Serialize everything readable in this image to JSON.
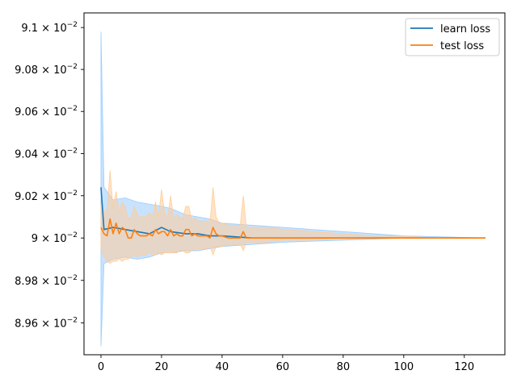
{
  "chart_data": {
    "type": "line",
    "title": "",
    "xlabel": "",
    "ylabel": "",
    "yscale": "log",
    "xlim": [
      -5.6,
      133.4
    ],
    "ylim": [
      0.08945,
      0.09107
    ],
    "x_ticks": [
      {
        "value": 0,
        "label": "0"
      },
      {
        "value": 20,
        "label": "20"
      },
      {
        "value": 40,
        "label": "40"
      },
      {
        "value": 60,
        "label": "60"
      },
      {
        "value": 80,
        "label": "80"
      },
      {
        "value": 100,
        "label": "100"
      },
      {
        "value": 120,
        "label": "120"
      }
    ],
    "y_ticks": [
      {
        "value": 0.0896,
        "mantissa": "8.96",
        "exponent": "−2"
      },
      {
        "value": 0.0898,
        "mantissa": "8.98",
        "exponent": "−2"
      },
      {
        "value": 0.09,
        "mantissa": "9",
        "exponent": "−2"
      },
      {
        "value": 0.0902,
        "mantissa": "9.02",
        "exponent": "−2"
      },
      {
        "value": 0.0904,
        "mantissa": "9.04",
        "exponent": "−2"
      },
      {
        "value": 0.0906,
        "mantissa": "9.06",
        "exponent": "−2"
      },
      {
        "value": 0.0908,
        "mantissa": "9.08",
        "exponent": "−2"
      },
      {
        "value": 0.091,
        "mantissa": "9.1",
        "exponent": "−2"
      }
    ],
    "tick_base": "× 10",
    "grid": false,
    "legend_position": "upper-right",
    "series": [
      {
        "name": "learn loss",
        "color": "#1f77b4",
        "band_color": "#99ccff",
        "x": [
          0,
          1,
          4,
          8,
          12,
          16,
          20,
          23,
          28,
          32,
          36,
          40,
          50,
          60,
          80,
          100,
          127
        ],
        "y": [
          0.09024,
          0.09004,
          0.09005,
          0.09004,
          0.09003,
          0.09002,
          0.09005,
          0.09003,
          0.09002,
          0.09002,
          0.09001,
          0.09001,
          0.09,
          0.09,
          0.09,
          0.09,
          0.09
        ],
        "upper": [
          0.09098,
          0.09024,
          0.09018,
          0.09019,
          0.09017,
          0.09016,
          0.09015,
          0.09014,
          0.09011,
          0.0901,
          0.09009,
          0.09007,
          0.09006,
          0.09005,
          0.09003,
          0.09001,
          0.09
        ],
        "lower": [
          0.08949,
          0.08988,
          0.0899,
          0.08991,
          0.0899,
          0.08991,
          0.08993,
          0.08993,
          0.08994,
          0.08994,
          0.08995,
          0.08996,
          0.08997,
          0.08998,
          0.08999,
          0.09,
          0.09
        ]
      },
      {
        "name": "test loss",
        "color": "#ff7f0e",
        "band_color": "#ffcc99",
        "x": [
          0,
          1,
          2,
          3,
          4,
          5,
          6,
          7,
          8,
          9,
          10,
          11,
          12,
          13,
          14,
          15,
          16,
          17,
          18,
          19,
          20,
          21,
          22,
          23,
          24,
          25,
          26,
          27,
          28,
          29,
          30,
          31,
          32,
          33,
          34,
          35,
          36,
          37,
          38,
          39,
          40,
          42,
          44,
          46,
          47,
          48,
          50,
          55,
          60,
          70,
          80,
          90,
          100,
          110,
          120,
          127
        ],
        "y": [
          0.09005,
          0.09002,
          0.09001,
          0.09009,
          0.09002,
          0.09007,
          0.09002,
          0.09005,
          0.09004,
          0.09,
          0.09,
          0.09004,
          0.09002,
          0.09001,
          0.09001,
          0.09001,
          0.09002,
          0.09001,
          0.09004,
          0.09002,
          0.09003,
          0.09003,
          0.09001,
          0.09004,
          0.09001,
          0.09002,
          0.09001,
          0.09001,
          0.09004,
          0.09004,
          0.09001,
          0.09002,
          0.09001,
          0.09001,
          0.09001,
          0.09001,
          0.09,
          0.09005,
          0.09002,
          0.09001,
          0.09001,
          0.09,
          0.09,
          0.09,
          0.09003,
          0.09,
          0.09,
          0.09,
          0.09,
          0.09,
          0.09,
          0.09,
          0.09,
          0.09,
          0.09,
          0.09
        ],
        "upper": [
          0.09015,
          0.09013,
          0.09013,
          0.09032,
          0.09014,
          0.09022,
          0.09012,
          0.09017,
          0.09015,
          0.09009,
          0.0901,
          0.09015,
          0.09011,
          0.0901,
          0.0901,
          0.0901,
          0.09012,
          0.0901,
          0.09017,
          0.0901,
          0.09023,
          0.09012,
          0.09009,
          0.0902,
          0.09009,
          0.09011,
          0.0901,
          0.09009,
          0.09015,
          0.09015,
          0.09008,
          0.0901,
          0.09008,
          0.09008,
          0.09008,
          0.09008,
          0.09007,
          0.09024,
          0.0901,
          0.09007,
          0.09007,
          0.09006,
          0.09006,
          0.09006,
          0.0902,
          0.09005,
          0.09005,
          0.09005,
          0.09004,
          0.09003,
          0.09002,
          0.09001,
          0.09001,
          0.09,
          0.09,
          0.09
        ],
        "lower": [
          0.08995,
          0.08991,
          0.08989,
          0.08988,
          0.08989,
          0.08989,
          0.0899,
          0.08989,
          0.0899,
          0.0899,
          0.08991,
          0.08992,
          0.08991,
          0.08992,
          0.08992,
          0.08992,
          0.08993,
          0.08992,
          0.08992,
          0.08993,
          0.08992,
          0.08993,
          0.08993,
          0.08993,
          0.08993,
          0.08993,
          0.08994,
          0.08994,
          0.08993,
          0.08993,
          0.08994,
          0.08995,
          0.08995,
          0.08995,
          0.08995,
          0.08995,
          0.08996,
          0.08992,
          0.08996,
          0.08996,
          0.08996,
          0.08997,
          0.08997,
          0.08997,
          0.08994,
          0.08998,
          0.08998,
          0.08998,
          0.08999,
          0.08999,
          0.09,
          0.09,
          0.09,
          0.09,
          0.09,
          0.09
        ]
      }
    ]
  }
}
